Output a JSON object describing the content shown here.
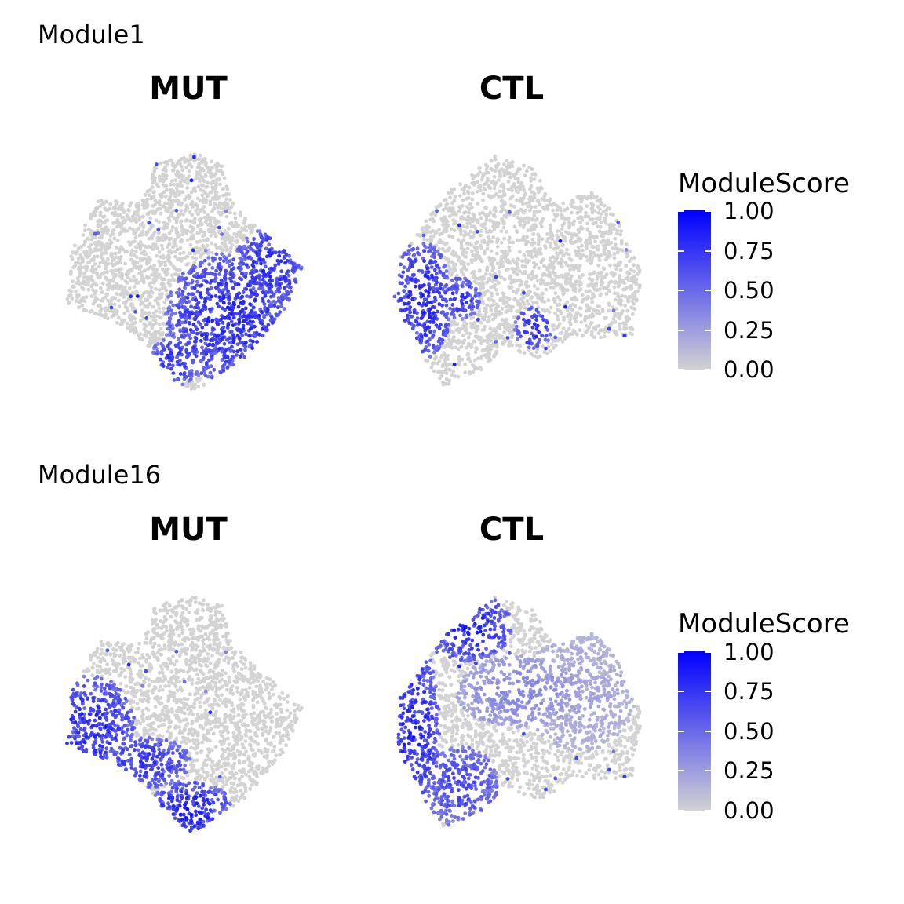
{
  "colors": {
    "low": "#d3d3d3",
    "high": "#0000ff",
    "background": "#ffffff"
  },
  "chart_data": [
    {
      "type": "scatter",
      "title": "Module1",
      "legend": {
        "title": "ModuleScore",
        "ticks": [
          "1.00",
          "0.75",
          "0.50",
          "0.25",
          "0.00"
        ],
        "range": [
          0,
          1
        ],
        "placement": "right"
      },
      "grid": false,
      "panels": [
        {
          "title": "MUT",
          "shape": [
            [
              -0.25,
              0.92
            ],
            [
              0.1,
              1
            ],
            [
              0.32,
              0.94
            ],
            [
              0.4,
              0.6
            ],
            [
              0.58,
              0.42
            ],
            [
              0.72,
              0.3
            ],
            [
              1,
              0.05
            ],
            [
              0.86,
              -0.3
            ],
            [
              0.52,
              -0.7
            ],
            [
              0.08,
              -1
            ],
            [
              -0.12,
              -0.88
            ],
            [
              -0.3,
              -0.62
            ],
            [
              -0.6,
              -0.4
            ],
            [
              -1,
              -0.26
            ],
            [
              -0.96,
              0.2
            ],
            [
              -0.72,
              0.62
            ],
            [
              -0.4,
              0.58
            ],
            [
              -0.3,
              0.72
            ]
          ],
          "hotspots": [
            {
              "center": [
                0.38,
                -0.38
              ],
              "radius": [
                0.55,
                0.55
              ],
              "value": 0.9
            },
            {
              "center": [
                0.72,
                0.05
              ],
              "radius": [
                0.3,
                0.32
              ],
              "value": 0.88
            },
            {
              "center": [
                -0.1,
                -0.75
              ],
              "radius": [
                0.22,
                0.2
              ],
              "value": 0.85
            }
          ]
        },
        {
          "title": "CTL",
          "shape": [
            [
              -0.45,
              0.78
            ],
            [
              -0.2,
              1
            ],
            [
              0.12,
              0.9
            ],
            [
              0.28,
              0.6
            ],
            [
              0.62,
              0.7
            ],
            [
              0.82,
              0.45
            ],
            [
              1,
              0.0
            ],
            [
              0.92,
              -0.5
            ],
            [
              0.66,
              -0.55
            ],
            [
              0.45,
              -0.5
            ],
            [
              0.2,
              -0.72
            ],
            [
              -0.1,
              -0.6
            ],
            [
              -0.3,
              -0.8
            ],
            [
              -0.6,
              -0.95
            ],
            [
              -0.82,
              -0.6
            ],
            [
              -1,
              -0.2
            ],
            [
              -0.95,
              0.15
            ],
            [
              -0.72,
              0.48
            ],
            [
              -0.58,
              0.68
            ]
          ],
          "hotspots": [
            {
              "center": [
                -0.78,
                -0.22
              ],
              "radius": [
                0.25,
                0.5
              ],
              "value": 0.92
            },
            {
              "center": [
                -0.5,
                -0.2
              ],
              "radius": [
                0.2,
                0.18
              ],
              "value": 0.85
            },
            {
              "center": [
                0.12,
                -0.45
              ],
              "radius": [
                0.15,
                0.18
              ],
              "value": 0.9
            }
          ]
        }
      ]
    },
    {
      "type": "scatter",
      "title": "Module16",
      "legend": {
        "title": "ModuleScore",
        "ticks": [
          "1.00",
          "0.75",
          "0.50",
          "0.25",
          "0.00"
        ],
        "range": [
          0,
          1
        ],
        "placement": "right"
      },
      "grid": false,
      "panels": [
        {
          "title": "MUT",
          "shape": [
            [
              -0.25,
              0.92
            ],
            [
              0.1,
              1
            ],
            [
              0.32,
              0.94
            ],
            [
              0.4,
              0.6
            ],
            [
              0.58,
              0.42
            ],
            [
              0.72,
              0.3
            ],
            [
              1,
              0.05
            ],
            [
              0.86,
              -0.3
            ],
            [
              0.52,
              -0.7
            ],
            [
              0.08,
              -1
            ],
            [
              -0.12,
              -0.88
            ],
            [
              -0.3,
              -0.62
            ],
            [
              -0.6,
              -0.4
            ],
            [
              -1,
              -0.26
            ],
            [
              -0.96,
              0.2
            ],
            [
              -0.72,
              0.62
            ],
            [
              -0.4,
              0.58
            ],
            [
              -0.3,
              0.72
            ]
          ],
          "hotspots": [
            {
              "center": [
                -0.8,
                -0.1
              ],
              "radius": [
                0.38,
                0.42
              ],
              "value": 0.9
            },
            {
              "center": [
                -0.35,
                -0.4
              ],
              "radius": [
                0.4,
                0.22
              ],
              "value": 0.85
            },
            {
              "center": [
                0.05,
                -0.8
              ],
              "radius": [
                0.35,
                0.25
              ],
              "value": 0.95
            }
          ]
        },
        {
          "title": "CTL",
          "shape": [
            [
              -0.45,
              0.78
            ],
            [
              -0.2,
              1
            ],
            [
              0.12,
              0.9
            ],
            [
              0.28,
              0.6
            ],
            [
              0.62,
              0.7
            ],
            [
              0.82,
              0.45
            ],
            [
              1,
              0.0
            ],
            [
              0.92,
              -0.5
            ],
            [
              0.66,
              -0.55
            ],
            [
              0.45,
              -0.5
            ],
            [
              0.2,
              -0.72
            ],
            [
              -0.1,
              -0.6
            ],
            [
              -0.3,
              -0.8
            ],
            [
              -0.6,
              -0.95
            ],
            [
              -0.82,
              -0.6
            ],
            [
              -1,
              -0.2
            ],
            [
              -0.95,
              0.15
            ],
            [
              -0.72,
              0.48
            ],
            [
              -0.58,
              0.68
            ]
          ],
          "hotspots": [
            {
              "center": [
                -0.85,
                -0.1
              ],
              "radius": [
                0.22,
                0.75
              ],
              "value": 0.92
            },
            {
              "center": [
                -0.4,
                0.75
              ],
              "radius": [
                0.35,
                0.3
              ],
              "value": 0.92
            },
            {
              "center": [
                -0.45,
                -0.6
              ],
              "radius": [
                0.3,
                0.35
              ],
              "value": 0.75
            },
            {
              "center": [
                0.0,
                0.2
              ],
              "radius": [
                0.5,
                0.3
              ],
              "value": 0.4
            },
            {
              "center": [
                0.5,
                0.2
              ],
              "radius": [
                0.45,
                0.5
              ],
              "value": 0.25
            }
          ]
        }
      ]
    }
  ]
}
